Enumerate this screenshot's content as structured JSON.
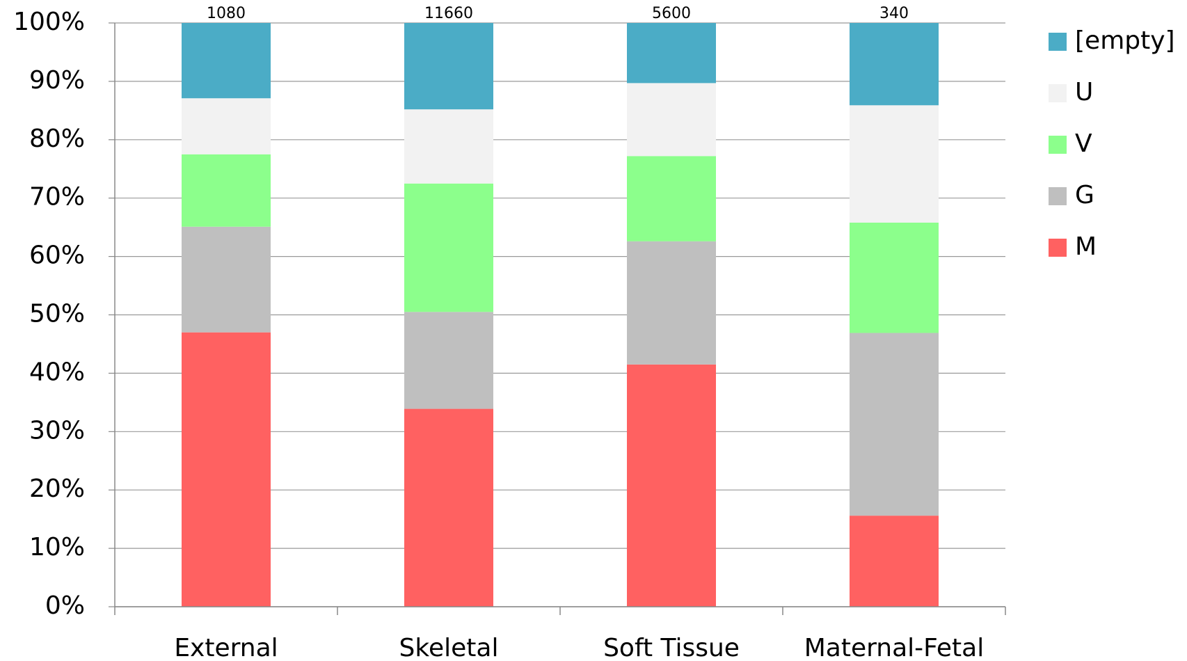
{
  "chart_data": {
    "type": "stacked_bar_100",
    "categories": [
      "External",
      "Skeletal",
      "Soft Tissue",
      "Maternal-Fetal"
    ],
    "totals": [
      1080,
      11660,
      5600,
      340
    ],
    "series": [
      {
        "name": "M",
        "color": "#ff6161",
        "values": [
          47.0,
          33.9,
          41.5,
          15.6
        ]
      },
      {
        "name": "G",
        "color": "#bfbfbf",
        "values": [
          18.1,
          16.6,
          21.1,
          31.3
        ]
      },
      {
        "name": "V",
        "color": "#8cff8c",
        "values": [
          12.4,
          22.0,
          14.6,
          18.9
        ]
      },
      {
        "name": "U",
        "color": "#f2f2f2",
        "values": [
          9.6,
          12.7,
          12.5,
          20.1
        ]
      },
      {
        "name": "[empty]",
        "color": "#4bacc6",
        "values": [
          12.9,
          14.8,
          10.3,
          14.1
        ]
      }
    ],
    "ylim": [
      0,
      100
    ],
    "yticks": [
      {
        "value": 0,
        "label": "0%"
      },
      {
        "value": 10,
        "label": "10%"
      },
      {
        "value": 20,
        "label": "20%"
      },
      {
        "value": 30,
        "label": "30%"
      },
      {
        "value": 40,
        "label": "40%"
      },
      {
        "value": 50,
        "label": "50%"
      },
      {
        "value": 60,
        "label": "60%"
      },
      {
        "value": 70,
        "label": "70%"
      },
      {
        "value": 80,
        "label": "80%"
      },
      {
        "value": 90,
        "label": "90%"
      },
      {
        "value": 100,
        "label": "100%"
      }
    ],
    "grid": true,
    "legend": "right"
  }
}
